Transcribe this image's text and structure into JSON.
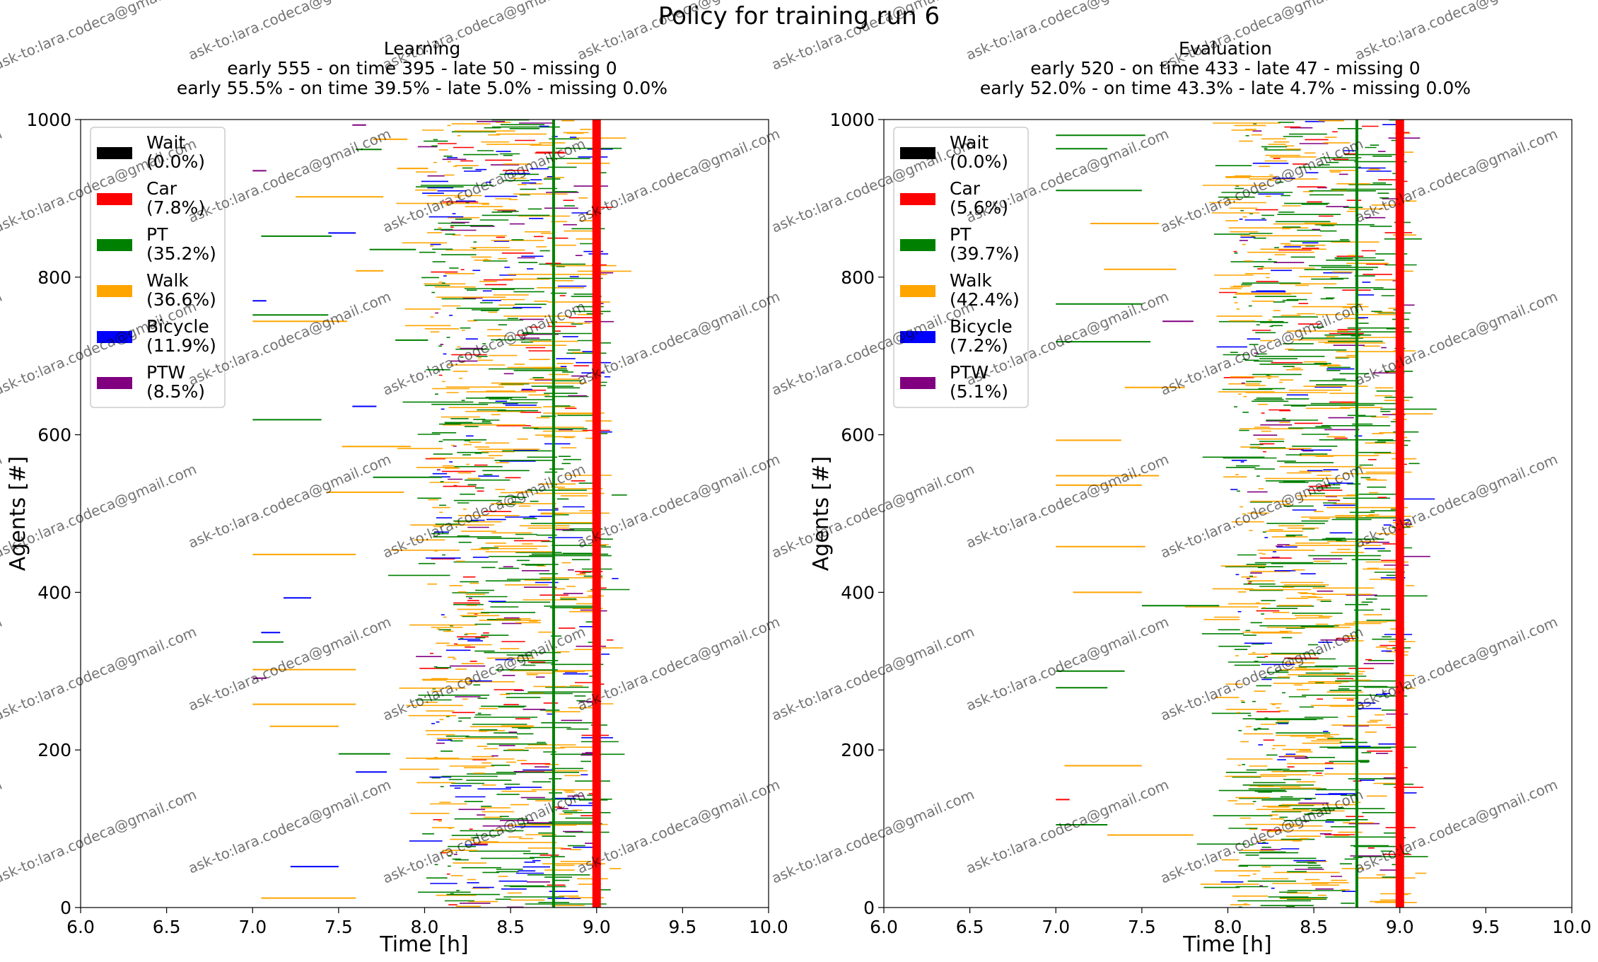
{
  "figure": {
    "suptitle": "Policy for training run 6",
    "watermark": "ask-to:lara.codeca@gmail.com"
  },
  "chart_data": [
    {
      "type": "timeline",
      "panel": "left",
      "title": "Learning",
      "subtitle_counts": "early 555 - on time 395 - late 50 - missing 0",
      "subtitle_percent": "early 55.5% - on time 39.5% - late 5.0% - missing 0.0%",
      "xlabel": "Time [h]",
      "ylabel": "Agents [#]",
      "xlim": [
        6.0,
        10.0
      ],
      "ylim": [
        0,
        1000
      ],
      "xticks": [
        "6.0",
        "6.5",
        "7.0",
        "7.5",
        "8.0",
        "8.5",
        "9.0",
        "9.5",
        "10.0"
      ],
      "yticks": [
        "0",
        "200",
        "400",
        "600",
        "800",
        "1000"
      ],
      "vertical_lines": [
        {
          "x": 8.75,
          "color": "#008000",
          "kind": "thin"
        },
        {
          "x": 9.0,
          "color": "#ff0000",
          "kind": "thick"
        }
      ],
      "legend_position": "upper-left",
      "legend": [
        {
          "label": "Wait",
          "share": "(0.0%)",
          "color": "#000000"
        },
        {
          "label": "Car",
          "share": "(7.8%)",
          "color": "#ff0000"
        },
        {
          "label": "PT",
          "share": "(35.2%)",
          "color": "#008000"
        },
        {
          "label": "Walk",
          "share": "(36.6%)",
          "color": "#ffa500"
        },
        {
          "label": "Bicycle",
          "share": "(11.9%)",
          "color": "#0000ff"
        },
        {
          "label": "PTW",
          "share": "(8.5%)",
          "color": "#800080"
        }
      ],
      "series": [
        {
          "name": "Wait",
          "share_pct": 0.0
        },
        {
          "name": "Car",
          "share_pct": 7.8
        },
        {
          "name": "PT",
          "share_pct": 35.2
        },
        {
          "name": "Walk",
          "share_pct": 36.6
        },
        {
          "name": "Bicycle",
          "share_pct": 11.9
        },
        {
          "name": "PTW",
          "share_pct": 8.5
        }
      ],
      "outcomes": {
        "early": 555,
        "on_time": 395,
        "late": 50,
        "missing": 0
      },
      "outliers": [
        {
          "agent": 993,
          "start": 7.58,
          "end": 7.66,
          "mode": "PTW"
        },
        {
          "agent": 975,
          "start": 7.7,
          "end": 7.9,
          "mode": "Walk"
        },
        {
          "agent": 962,
          "start": 7.6,
          "end": 7.75,
          "mode": "PT"
        },
        {
          "agent": 938,
          "start": 7.84,
          "end": 8.02,
          "mode": "Walk"
        },
        {
          "agent": 935,
          "start": 7.0,
          "end": 7.08,
          "mode": "PTW"
        },
        {
          "agent": 902,
          "start": 7.25,
          "end": 7.76,
          "mode": "Walk"
        },
        {
          "agent": 852,
          "start": 7.05,
          "end": 7.46,
          "mode": "PT"
        },
        {
          "agent": 856,
          "start": 7.44,
          "end": 7.6,
          "mode": "Bicycle"
        },
        {
          "agent": 835,
          "start": 7.68,
          "end": 7.95,
          "mode": "PT"
        },
        {
          "agent": 808,
          "start": 7.6,
          "end": 7.76,
          "mode": "Walk"
        },
        {
          "agent": 770,
          "start": 7.0,
          "end": 7.08,
          "mode": "Bicycle"
        },
        {
          "agent": 752,
          "start": 7.0,
          "end": 7.44,
          "mode": "PT"
        },
        {
          "agent": 744,
          "start": 7.0,
          "end": 7.55,
          "mode": "Walk"
        },
        {
          "agent": 720,
          "start": 7.83,
          "end": 8.02,
          "mode": "PT"
        },
        {
          "agent": 636,
          "start": 7.58,
          "end": 7.72,
          "mode": "Bicycle"
        },
        {
          "agent": 619,
          "start": 7.0,
          "end": 7.4,
          "mode": "PT"
        },
        {
          "agent": 585,
          "start": 7.52,
          "end": 7.92,
          "mode": "Walk"
        },
        {
          "agent": 546,
          "start": 7.7,
          "end": 8.1,
          "mode": "PT"
        },
        {
          "agent": 527,
          "start": 7.43,
          "end": 7.88,
          "mode": "Walk"
        },
        {
          "agent": 448,
          "start": 7.0,
          "end": 7.6,
          "mode": "Walk"
        },
        {
          "agent": 393,
          "start": 7.18,
          "end": 7.34,
          "mode": "Bicycle"
        },
        {
          "agent": 349,
          "start": 7.05,
          "end": 7.16,
          "mode": "Bicycle"
        },
        {
          "agent": 337,
          "start": 7.0,
          "end": 7.18,
          "mode": "PT"
        },
        {
          "agent": 302,
          "start": 7.0,
          "end": 7.6,
          "mode": "Walk"
        },
        {
          "agent": 291,
          "start": 7.0,
          "end": 7.08,
          "mode": "PTW"
        },
        {
          "agent": 258,
          "start": 7.0,
          "end": 7.6,
          "mode": "Walk"
        },
        {
          "agent": 230,
          "start": 7.1,
          "end": 7.5,
          "mode": "Walk"
        },
        {
          "agent": 195,
          "start": 7.5,
          "end": 7.8,
          "mode": "PT"
        },
        {
          "agent": 172,
          "start": 7.6,
          "end": 7.78,
          "mode": "Bicycle"
        },
        {
          "agent": 52,
          "start": 7.22,
          "end": 7.5,
          "mode": "Bicycle"
        },
        {
          "agent": 12,
          "start": 7.05,
          "end": 7.6,
          "mode": "Walk"
        }
      ]
    },
    {
      "type": "timeline",
      "panel": "right",
      "title": "Evaluation",
      "subtitle_counts": "early 520 - on time 433 - late 47 - missing 0",
      "subtitle_percent": "early 52.0% - on time 43.3% - late 4.7% - missing 0.0%",
      "xlabel": "Time [h]",
      "ylabel": "Agents [#]",
      "xlim": [
        6.0,
        10.0
      ],
      "ylim": [
        0,
        1000
      ],
      "xticks": [
        "6.0",
        "6.5",
        "7.0",
        "7.5",
        "8.0",
        "8.5",
        "9.0",
        "9.5",
        "10.0"
      ],
      "yticks": [
        "0",
        "200",
        "400",
        "600",
        "800",
        "1000"
      ],
      "vertical_lines": [
        {
          "x": 8.75,
          "color": "#008000",
          "kind": "thin"
        },
        {
          "x": 9.0,
          "color": "#ff0000",
          "kind": "thick"
        }
      ],
      "legend_position": "upper-left",
      "legend": [
        {
          "label": "Wait",
          "share": "(0.0%)",
          "color": "#000000"
        },
        {
          "label": "Car",
          "share": "(5.6%)",
          "color": "#ff0000"
        },
        {
          "label": "PT",
          "share": "(39.7%)",
          "color": "#008000"
        },
        {
          "label": "Walk",
          "share": "(42.4%)",
          "color": "#ffa500"
        },
        {
          "label": "Bicycle",
          "share": "(7.2%)",
          "color": "#0000ff"
        },
        {
          "label": "PTW",
          "share": "(5.1%)",
          "color": "#800080"
        }
      ],
      "series": [
        {
          "name": "Wait",
          "share_pct": 0.0
        },
        {
          "name": "Car",
          "share_pct": 5.6
        },
        {
          "name": "PT",
          "share_pct": 39.7
        },
        {
          "name": "Walk",
          "share_pct": 42.4
        },
        {
          "name": "Bicycle",
          "share_pct": 7.2
        },
        {
          "name": "PTW",
          "share_pct": 5.1
        }
      ],
      "outcomes": {
        "early": 520,
        "on_time": 433,
        "late": 47,
        "missing": 0
      },
      "outliers": [
        {
          "agent": 980,
          "start": 7.0,
          "end": 7.52,
          "mode": "PT"
        },
        {
          "agent": 963,
          "start": 7.0,
          "end": 7.3,
          "mode": "PT"
        },
        {
          "agent": 910,
          "start": 7.0,
          "end": 7.5,
          "mode": "PT"
        },
        {
          "agent": 868,
          "start": 7.2,
          "end": 7.6,
          "mode": "Walk"
        },
        {
          "agent": 810,
          "start": 7.28,
          "end": 7.7,
          "mode": "Walk"
        },
        {
          "agent": 766,
          "start": 7.0,
          "end": 7.5,
          "mode": "PT"
        },
        {
          "agent": 744,
          "start": 7.62,
          "end": 7.8,
          "mode": "PTW"
        },
        {
          "agent": 718,
          "start": 7.0,
          "end": 7.55,
          "mode": "PT"
        },
        {
          "agent": 660,
          "start": 7.4,
          "end": 7.75,
          "mode": "Walk"
        },
        {
          "agent": 593,
          "start": 7.0,
          "end": 7.38,
          "mode": "Walk"
        },
        {
          "agent": 548,
          "start": 7.0,
          "end": 7.6,
          "mode": "Walk"
        },
        {
          "agent": 536,
          "start": 7.0,
          "end": 7.5,
          "mode": "Walk"
        },
        {
          "agent": 458,
          "start": 7.0,
          "end": 7.52,
          "mode": "Walk"
        },
        {
          "agent": 400,
          "start": 7.1,
          "end": 7.5,
          "mode": "Walk"
        },
        {
          "agent": 383,
          "start": 7.5,
          "end": 7.95,
          "mode": "PT"
        },
        {
          "agent": 300,
          "start": 7.0,
          "end": 7.4,
          "mode": "PT"
        },
        {
          "agent": 279,
          "start": 7.0,
          "end": 7.3,
          "mode": "PT"
        },
        {
          "agent": 180,
          "start": 7.05,
          "end": 7.5,
          "mode": "Walk"
        },
        {
          "agent": 137,
          "start": 7.0,
          "end": 7.08,
          "mode": "Car"
        },
        {
          "agent": 105,
          "start": 7.0,
          "end": 7.3,
          "mode": "PT"
        },
        {
          "agent": 92,
          "start": 7.3,
          "end": 7.8,
          "mode": "Walk"
        }
      ]
    }
  ]
}
